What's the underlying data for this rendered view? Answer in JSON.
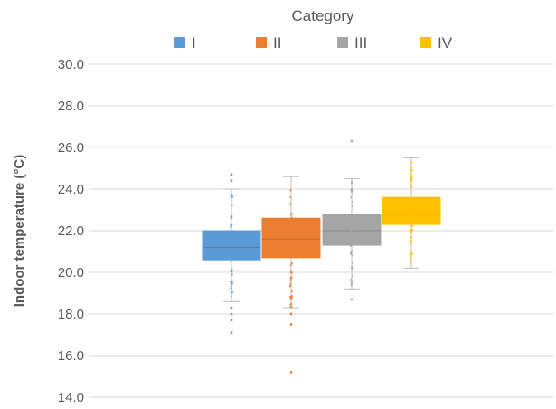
{
  "chart_data": {
    "type": "box",
    "title": "",
    "xlabel": "",
    "ylabel": "Indoor temperature (°C)",
    "ylim": [
      14.0,
      30.0
    ],
    "yticks": [
      "14.0",
      "16.0",
      "18.0",
      "20.0",
      "22.0",
      "24.0",
      "26.0",
      "28.0",
      "30.0"
    ],
    "ytick_values": [
      14,
      16,
      18,
      20,
      22,
      24,
      26,
      28,
      30
    ],
    "grid": true,
    "legend": {
      "title": "Category",
      "placement": "top"
    },
    "series": [
      {
        "name": "I",
        "color": "#5B9BD5",
        "whisker_low": 18.6,
        "q1": 20.6,
        "median": 21.2,
        "q3": 22.0,
        "whisker_high": 24.0,
        "outliers": [
          17.1,
          17.7,
          18.0,
          18.3,
          24.4,
          24.7
        ]
      },
      {
        "name": "II",
        "color": "#ED7D31",
        "whisker_low": 18.3,
        "q1": 20.7,
        "median": 21.6,
        "q3": 22.6,
        "whisker_high": 24.6,
        "outliers": [
          15.2,
          17.5,
          18.0
        ]
      },
      {
        "name": "III",
        "color": "#A5A5A5",
        "whisker_low": 19.2,
        "q1": 21.3,
        "median": 22.0,
        "q3": 22.8,
        "whisker_high": 24.5,
        "outliers": [
          18.7,
          26.3
        ]
      },
      {
        "name": "IV",
        "color": "#FFC000",
        "whisker_low": 20.2,
        "q1": 22.3,
        "median": 22.8,
        "q3": 23.6,
        "whisker_high": 25.5,
        "outliers": []
      }
    ]
  }
}
